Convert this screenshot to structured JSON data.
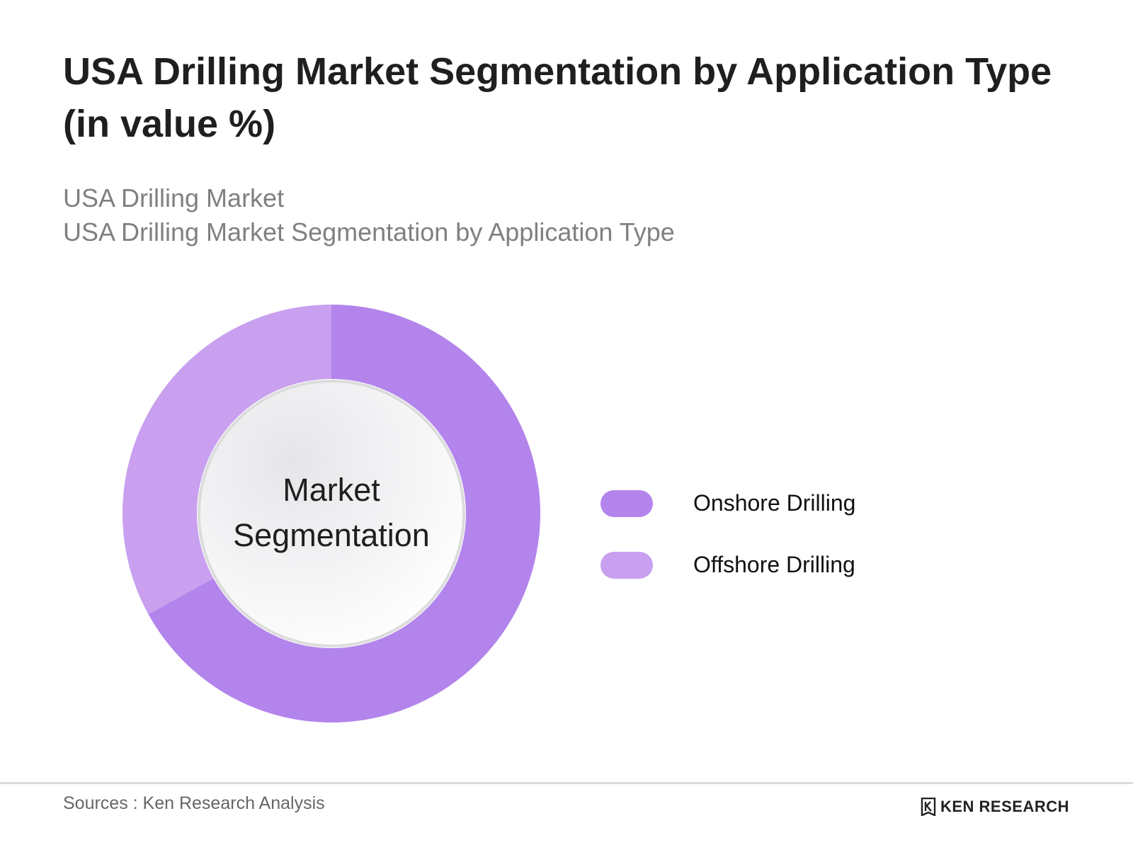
{
  "title": "USA Drilling Market Segmentation by Application Type (in value %)",
  "subtitles": [
    "USA Drilling Market",
    "USA Drilling Market Segmentation by Application Type"
  ],
  "center_label": [
    "Market",
    "Segmentation"
  ],
  "footer": {
    "source": "Sources : Ken Research Analysis",
    "brand": "KEN RESEARCH"
  },
  "colors": {
    "onshore": "#b384ec",
    "offshore": "#c8a0ef",
    "center": "#f2f2f4"
  },
  "chart_data": {
    "type": "pie",
    "variant": "donut",
    "title": "USA Drilling Market Segmentation by Application Type (in value %)",
    "categories": [
      "Onshore Drilling",
      "Offshore Drilling"
    ],
    "values": [
      67,
      33
    ],
    "unit": "%",
    "legend": "right"
  }
}
